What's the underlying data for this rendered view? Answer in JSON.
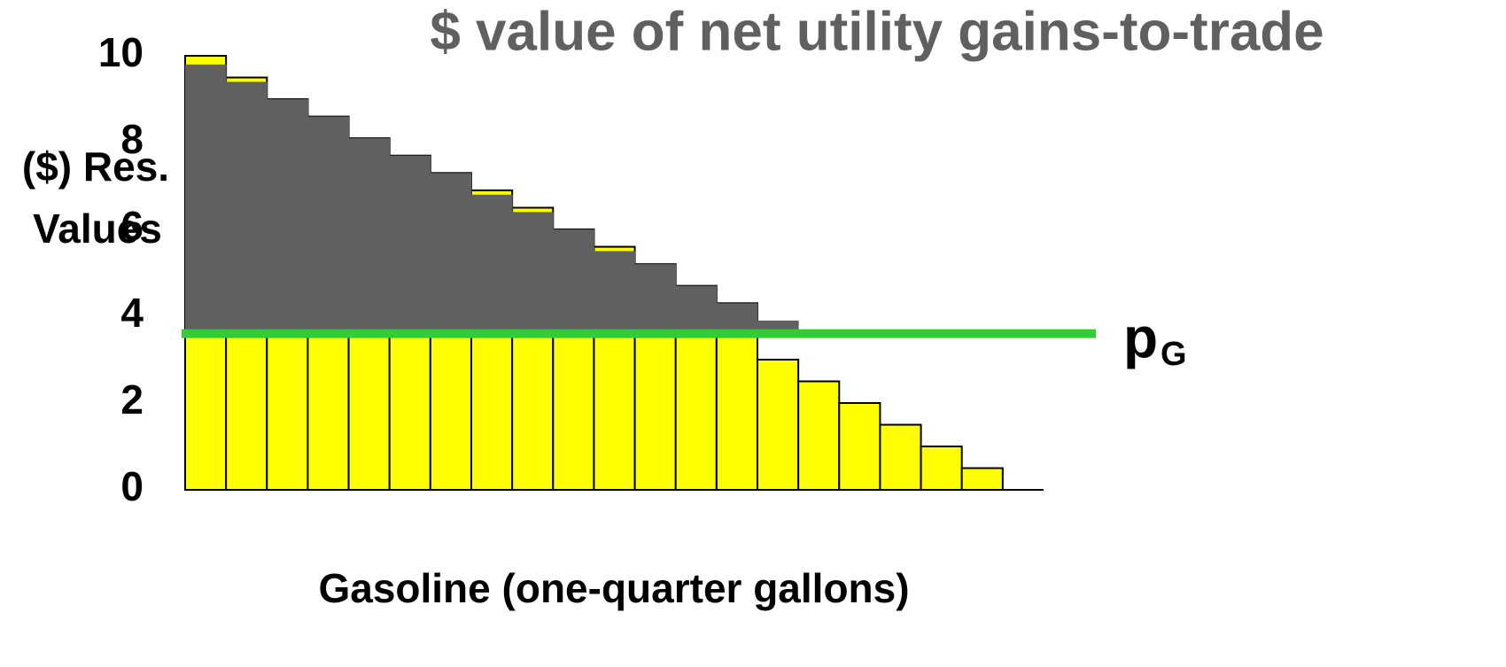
{
  "chart_data": {
    "type": "bar",
    "title": "$ value of net utility gains-to-trade",
    "y_label": [
      "($) Res.",
      "Values"
    ],
    "x_label": "Gasoline (one-quarter gallons)",
    "price_label": {
      "text": "p",
      "subscript": "G"
    },
    "price": 3.6,
    "price_color": "#33cc33",
    "xlim": [
      0,
      21
    ],
    "ylim": [
      0,
      10
    ],
    "yticks": [
      0,
      2,
      4,
      6,
      8,
      10
    ],
    "series": [
      {
        "name": "Reservation values",
        "color": "#ffff00",
        "values": [
          10,
          9.5,
          9.0,
          8.6,
          8.1,
          7.7,
          7.3,
          6.9,
          6.5,
          6.0,
          5.6,
          5.2,
          4.7,
          4.3,
          3.0,
          2.5,
          2.0,
          1.5,
          1.0,
          0.5
        ]
      },
      {
        "name": "Net utility gains",
        "color": "#606060",
        "values": [
          9.8,
          9.4,
          9.0,
          8.6,
          8.1,
          7.7,
          7.3,
          6.8,
          6.4,
          6.0,
          5.5,
          5.2,
          4.7,
          4.3,
          3.9
        ]
      }
    ]
  }
}
